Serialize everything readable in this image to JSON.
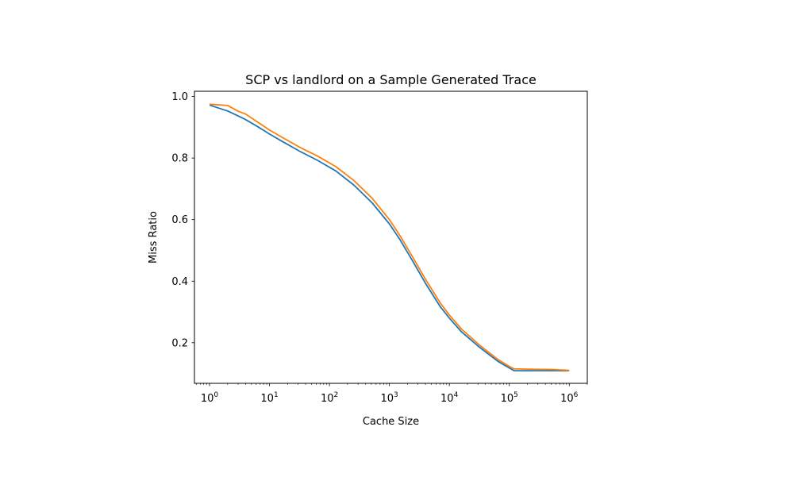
{
  "chart_data": {
    "type": "line",
    "title": "SCP vs landlord on a Sample Generated Trace",
    "xlabel": "Cache Size",
    "ylabel": "Miss Ratio",
    "xscale": "log",
    "xlim": [
      0.56,
      2000000
    ],
    "ylim": [
      0.068,
      1.017
    ],
    "grid": false,
    "legend": "none",
    "x_ticks": [
      {
        "value": 1,
        "base": "10",
        "exp": "0"
      },
      {
        "value": 10,
        "base": "10",
        "exp": "1"
      },
      {
        "value": 100,
        "base": "10",
        "exp": "2"
      },
      {
        "value": 1000,
        "base": "10",
        "exp": "3"
      },
      {
        "value": 10000,
        "base": "10",
        "exp": "4"
      },
      {
        "value": 100000,
        "base": "10",
        "exp": "5"
      },
      {
        "value": 1000000,
        "base": "10",
        "exp": "6"
      }
    ],
    "y_ticks": [
      {
        "value": 0.2,
        "label": "0.2"
      },
      {
        "value": 0.4,
        "label": "0.4"
      },
      {
        "value": 0.6,
        "label": "0.6"
      },
      {
        "value": 0.8,
        "label": "0.8"
      },
      {
        "value": 1.0,
        "label": "1.0"
      }
    ],
    "x": [
      1,
      2,
      3,
      4,
      6,
      8,
      10,
      16,
      32,
      64,
      128,
      256,
      512,
      1000,
      1500,
      2500,
      4000,
      7000,
      10000,
      16000,
      32000,
      64000,
      100000,
      120000,
      200000,
      500000,
      1000000
    ],
    "series": [
      {
        "color": "#1f77b4",
        "values": [
          0.972,
          0.953,
          0.937,
          0.925,
          0.905,
          0.89,
          0.878,
          0.855,
          0.822,
          0.792,
          0.758,
          0.712,
          0.655,
          0.586,
          0.535,
          0.462,
          0.393,
          0.318,
          0.28,
          0.235,
          0.185,
          0.14,
          0.118,
          0.109,
          0.109,
          0.109,
          0.109
        ]
      },
      {
        "color": "#ff7f0e",
        "values": [
          0.975,
          0.971,
          0.952,
          0.943,
          0.92,
          0.904,
          0.891,
          0.868,
          0.835,
          0.806,
          0.772,
          0.727,
          0.67,
          0.6,
          0.548,
          0.475,
          0.406,
          0.33,
          0.29,
          0.244,
          0.192,
          0.146,
          0.123,
          0.115,
          0.114,
          0.113,
          0.11
        ]
      }
    ]
  }
}
